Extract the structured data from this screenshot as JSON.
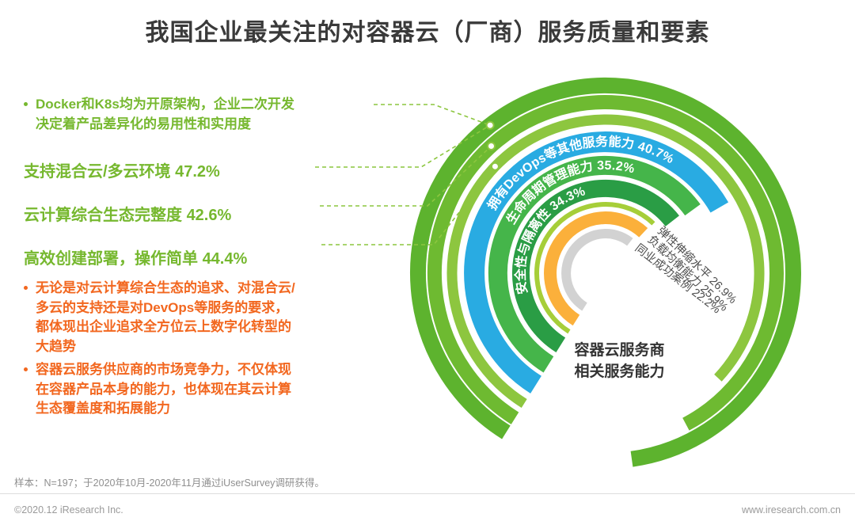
{
  "title": "我国企业最关注的对容器云（厂商）服务质量和要素",
  "colors": {
    "text_green": "#76b82f",
    "text_orange": "#f2671f",
    "callout_green": "#8cc63f",
    "title_color": "#3a3a3a",
    "arc_end_label_color": "#4d4d4d"
  },
  "left_panel": {
    "bullet1": {
      "lines": [
        "Docker和K8s均为开原架构，企业二次开发",
        "决定着产品差异化的易用性和实用度"
      ]
    },
    "metrics": [
      {
        "label": "支持混合云/多云环境",
        "value": "47.2%"
      },
      {
        "label": "云计算综合生态完整度",
        "value": "42.6%"
      },
      {
        "label": "高效创建部署，操作简单",
        "value": "44.4%"
      }
    ],
    "bullet2": {
      "lines": [
        "无论是对云计算综合生态的追求、对混合云/",
        "多云的支持还是对DevOps等服务的要求，",
        "都体现出企业追求全方位云上数字化转型的",
        "大趋势"
      ]
    },
    "bullet3": {
      "lines": [
        "容器云服务供应商的市场竞争力，不仅体现",
        "在容器产品本身的能力，也体现在其云计算",
        "生态覆盖度和拓展能力"
      ]
    }
  },
  "chart_data": {
    "type": "radial-bar",
    "unit": "%",
    "title": "容器云服务商相关服务能力",
    "center_label_lines": [
      "容器云服务商",
      "相关服务能力"
    ],
    "legend_position": "labels-on-arcs",
    "series": [
      {
        "name": "支持混合云/多云环境",
        "value": 47.2,
        "color": "#5db32e",
        "label_position": "left-callout"
      },
      {
        "name": "云计算综合生态完整度",
        "value": 42.6,
        "color": "#6eba31",
        "label_position": "left-callout"
      },
      {
        "name": "高效创建部署，操作简单",
        "value": 44.4,
        "color": "#8dc63f",
        "label_position": "left-callout"
      },
      {
        "name": "拥有DevOps等其他服务能力",
        "value": 40.7,
        "color": "#29abe2",
        "label_position": "on-arc"
      },
      {
        "name": "生命周期管理能力",
        "value": 35.2,
        "color": "#45b54a",
        "label_position": "on-arc"
      },
      {
        "name": "安全性与隔离性",
        "value": 34.3,
        "color": "#2a9d45",
        "label_position": "on-arc"
      },
      {
        "name": "弹性伸缩水平",
        "value": 26.9,
        "color": "#a6ce39",
        "label_position": "arc-end"
      },
      {
        "name": "负载均衡能力",
        "value": 25.9,
        "color": "#fbb03b",
        "label_position": "arc-end"
      },
      {
        "name": "同业成功案例",
        "value": 22.2,
        "color": "#d2d2d2",
        "label_position": "arc-end"
      }
    ]
  },
  "footer": {
    "sample_note": "样本：N=197；于2020年10月-2020年11月通过iUserSurvey调研获得。",
    "copyright": "©2020.12 iResearch Inc.",
    "website": "www.iresearch.com.cn"
  }
}
